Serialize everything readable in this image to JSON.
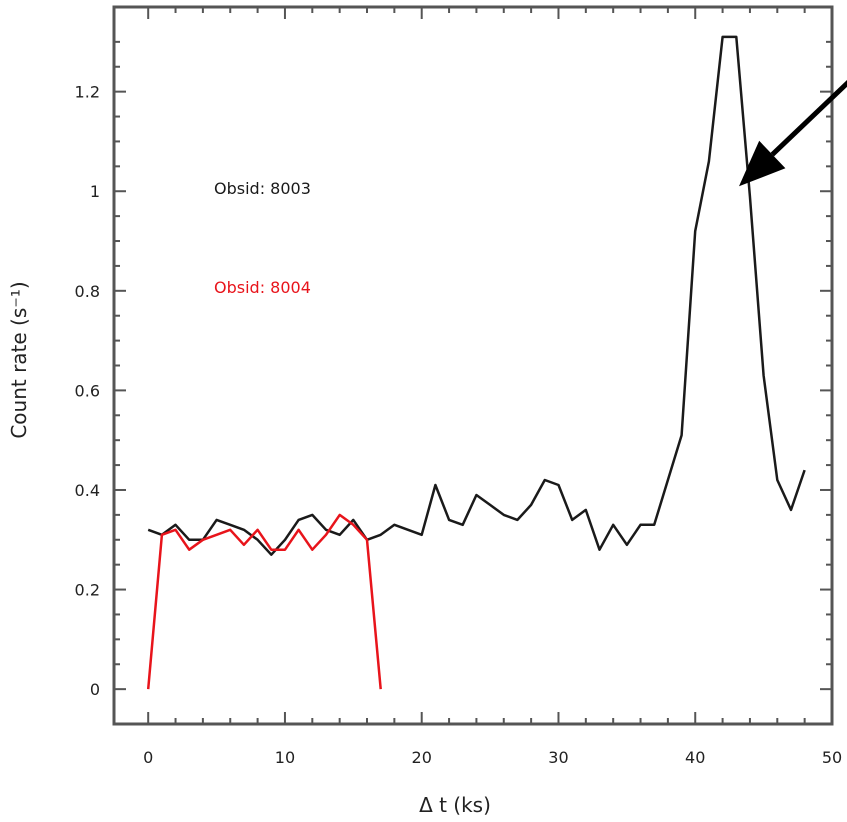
{
  "chart_data": {
    "type": "line",
    "title": "",
    "xlabel": "Δ t (ks)",
    "ylabel": "Count rate (s⁻¹)",
    "xlim": [
      -2.5,
      50
    ],
    "ylim": [
      -0.07,
      1.37
    ],
    "x_ticks": [
      0,
      10,
      20,
      30,
      40,
      50
    ],
    "x_tick_labels": [
      "0",
      "10",
      "20",
      "30",
      "40",
      "50"
    ],
    "y_ticks": [
      0,
      0.2,
      0.4,
      0.6,
      0.8,
      1.0,
      1.2
    ],
    "y_tick_labels": [
      "0",
      "0.2",
      "0.4",
      "0.6",
      "0.8",
      "1",
      "1.2"
    ],
    "grid": false,
    "series": [
      {
        "name": "Obsid: 8003",
        "color": "#1a1a1a",
        "x": [
          0,
          1,
          2,
          3,
          4,
          5,
          6,
          7,
          8,
          9,
          10,
          11,
          12,
          13,
          14,
          15,
          16,
          17,
          18,
          19,
          20,
          21,
          22,
          23,
          24,
          25,
          26,
          27,
          28,
          29,
          30,
          31,
          32,
          33,
          34,
          35,
          36,
          37,
          38,
          39,
          40,
          41,
          42,
          43,
          44,
          45,
          46,
          47,
          48
        ],
        "y": [
          0.32,
          0.31,
          0.33,
          0.3,
          0.3,
          0.34,
          0.33,
          0.32,
          0.3,
          0.27,
          0.3,
          0.34,
          0.35,
          0.32,
          0.31,
          0.34,
          0.3,
          0.31,
          0.33,
          0.32,
          0.31,
          0.41,
          0.34,
          0.33,
          0.39,
          0.37,
          0.35,
          0.34,
          0.37,
          0.42,
          0.41,
          0.34,
          0.36,
          0.28,
          0.33,
          0.29,
          0.33,
          0.33,
          0.42,
          0.51,
          0.92,
          1.06,
          1.31,
          1.31,
          0.99,
          0.63,
          0.42,
          0.36,
          0.44
        ]
      },
      {
        "name": "Obsid: 8004",
        "color": "#e8141b",
        "x": [
          0,
          1,
          2,
          3,
          4,
          5,
          6,
          7,
          8,
          9,
          10,
          11,
          12,
          13,
          14,
          15,
          16,
          17
        ],
        "y": [
          0.0,
          0.31,
          0.32,
          0.28,
          0.3,
          0.31,
          0.32,
          0.29,
          0.32,
          0.28,
          0.28,
          0.32,
          0.28,
          0.31,
          0.35,
          0.33,
          0.3,
          0.0
        ]
      }
    ],
    "annotations": [
      {
        "type": "arrow",
        "color": "#000000",
        "from": [
          52,
          1.24
        ],
        "to": [
          43.2,
          1.01
        ]
      }
    ]
  }
}
